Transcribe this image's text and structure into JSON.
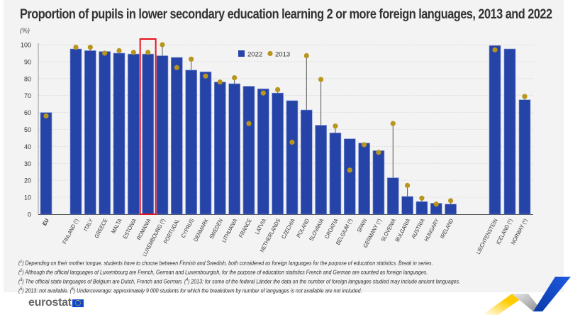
{
  "chart_data": {
    "type": "bar",
    "title": "Proportion of pupils in lower secondary education learning 2 or more foreign languages, 2013 and 2022",
    "ylabel": "(%)",
    "xlabel": "",
    "ylim": [
      0,
      100
    ],
    "yticks": [
      "0",
      "10",
      "20",
      "30",
      "40",
      "50",
      "60",
      "70",
      "80",
      "90",
      "100"
    ],
    "grid": true,
    "legend_position": "top-center",
    "highlighted_category": "ROMANIA",
    "categories": [
      "EU",
      "FINLAND (¹)",
      "ITALY",
      "GREECE",
      "MALTA",
      "ESTONIA",
      "ROMANIA",
      "LUXEMBOURG (²)",
      "PORTUGAL",
      "CYPRUS",
      "DENMARK",
      "SWEDEN",
      "LITHUANIA",
      "FRANCE",
      "LATVIA",
      "NETHERLANDS",
      "CZECHIA",
      "POLAND",
      "SLOVAKIA",
      "CROATIA",
      "BELGIUM (³)",
      "SPAIN",
      "GERMANY (⁴)",
      "SLOVENIA",
      "BULGARIA",
      "AUSTRIA",
      "HUNGARY",
      "IRELAND",
      "LIECHTENSTEIN",
      "ICELAND (⁵)",
      "NORWAY (⁶)"
    ],
    "groups": [
      0,
      1,
      1,
      1,
      1,
      1,
      1,
      1,
      1,
      1,
      1,
      1,
      1,
      1,
      1,
      1,
      1,
      1,
      1,
      1,
      1,
      1,
      1,
      1,
      1,
      1,
      1,
      1,
      2,
      2,
      2
    ],
    "series": [
      {
        "name": "2022",
        "kind": "bar",
        "color": "#2644a8",
        "values": [
          60,
          97.5,
          96.5,
          96,
          95,
          94.5,
          94.5,
          93.5,
          92.5,
          85,
          84,
          78,
          77,
          75.5,
          74,
          71.5,
          67,
          61.5,
          52.5,
          48,
          44.5,
          42,
          37.5,
          21.5,
          10.5,
          7.5,
          6.5,
          6,
          99.5,
          97.5,
          67.5
        ]
      },
      {
        "name": "2013",
        "kind": "dot",
        "color": "#b8961e",
        "values": [
          58,
          98.5,
          98.5,
          95,
          96.5,
          95.5,
          95.5,
          100,
          86.5,
          91.5,
          81.5,
          78,
          80.5,
          53.5,
          71.5,
          73.5,
          42.5,
          93.5,
          79.5,
          52,
          26,
          41,
          36.5,
          53.5,
          17,
          9.5,
          6,
          8,
          97,
          null,
          69.5
        ]
      }
    ]
  },
  "footnotes": [
    {
      "mark": "1",
      "text": " Depending on their mother tongue, students have to choose between Finnish and Swedish, both considered as foreign languages for the purpose of education statistics. Break in series."
    },
    {
      "mark": "2",
      "text": " Although the official languages of Luxembourg are French, German and Luxembourgish, for the purpose of education statistics French and German are counted as foreign languages."
    },
    {
      "mark": "3",
      "text": " The official state languages of Belgium are Dutch, French and German. ",
      "mark2": "4",
      "text2": " 2013: for some of the federal Länder the data on the number of foreign languages studied may include ancient languages."
    },
    {
      "mark": "5",
      "text": " 2013: not available. ",
      "mark2": "6",
      "text2": " Undercoverage: approximately 9 000 students for which the breakdown by number of languages is not available are not included."
    }
  ],
  "logo": {
    "text": "eurostat"
  },
  "colors": {
    "bar": "#2644a8",
    "dot": "#b8961e",
    "highlight": "#e8141c",
    "panel": "#f3f3f3"
  }
}
